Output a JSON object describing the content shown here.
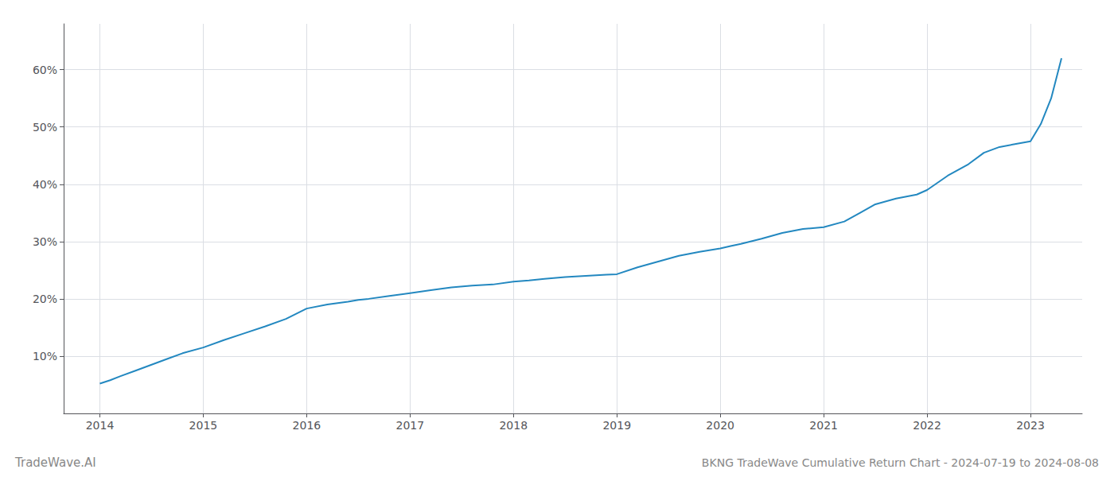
{
  "chart_data": {
    "type": "line",
    "title": "BKNG TradeWave Cumulative Return Chart - 2024-07-19 to 2024-08-08",
    "annotations": [
      "TradeWave.AI"
    ],
    "color": "#2388c0",
    "x": [
      2014.0,
      2014.1,
      2014.2,
      2014.35,
      2014.5,
      2014.65,
      2014.8,
      2015.0,
      2015.2,
      2015.4,
      2015.6,
      2015.8,
      2016.0,
      2016.2,
      2016.4,
      2016.5,
      2016.6,
      2016.8,
      2017.0,
      2017.2,
      2017.4,
      2017.6,
      2017.8,
      2018.0,
      2018.15,
      2018.3,
      2018.5,
      2018.7,
      2018.9,
      2019.0,
      2019.2,
      2019.4,
      2019.6,
      2019.8,
      2020.0,
      2020.1,
      2020.2,
      2020.4,
      2020.6,
      2020.8,
      2021.0,
      2021.2,
      2021.35,
      2021.5,
      2021.7,
      2021.9,
      2022.0,
      2022.2,
      2022.4,
      2022.55,
      2022.7,
      2022.85,
      2023.0,
      2023.1,
      2023.2,
      2023.3
    ],
    "values": [
      5.2,
      5.8,
      6.5,
      7.5,
      8.5,
      9.5,
      10.5,
      11.5,
      12.8,
      14.0,
      15.2,
      16.5,
      18.3,
      19.0,
      19.5,
      19.8,
      20.0,
      20.5,
      21.0,
      21.5,
      22.0,
      22.3,
      22.5,
      23.0,
      23.2,
      23.5,
      23.8,
      24.0,
      24.2,
      24.3,
      25.5,
      26.5,
      27.5,
      28.2,
      28.8,
      29.2,
      29.6,
      30.5,
      31.5,
      32.2,
      32.5,
      33.5,
      35.0,
      36.5,
      37.5,
      38.2,
      39.0,
      41.5,
      43.5,
      45.5,
      46.5,
      47.0,
      47.5,
      50.5,
      55.0,
      62.0
    ],
    "xlim": [
      2013.65,
      2023.5
    ],
    "ylim": [
      0,
      68
    ],
    "xticks": [
      2014,
      2015,
      2016,
      2017,
      2018,
      2019,
      2020,
      2021,
      2022,
      2023
    ],
    "yticks": [
      {
        "value": 10,
        "label": "10%"
      },
      {
        "value": 20,
        "label": "20%"
      },
      {
        "value": 30,
        "label": "30%"
      },
      {
        "value": 40,
        "label": "40%"
      },
      {
        "value": 50,
        "label": "50%"
      },
      {
        "value": 60,
        "label": "60%"
      }
    ],
    "grid": true
  }
}
